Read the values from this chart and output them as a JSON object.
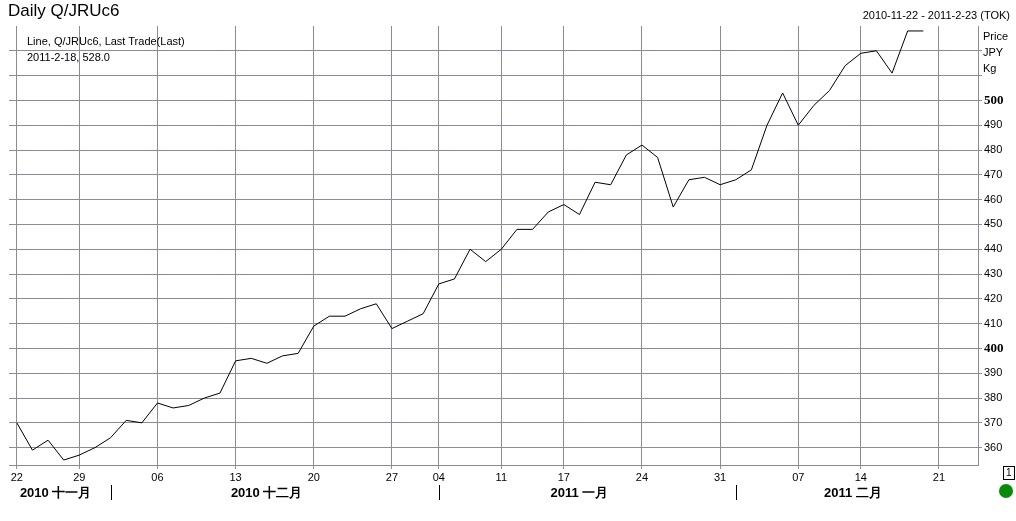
{
  "chart_data": {
    "type": "line",
    "title": "Daily Q/JRUc6",
    "subtitle": "2010-11-22 - 2011-2-23 (TOK)",
    "ylabel": "Price JPY Kg",
    "categories": [
      "22",
      null,
      null,
      null,
      "29",
      null,
      null,
      null,
      null,
      "06",
      null,
      null,
      null,
      null,
      "13",
      null,
      null,
      null,
      null,
      "20",
      null,
      null,
      null,
      null,
      "27",
      null,
      null,
      "04",
      null,
      null,
      null,
      "11",
      null,
      null,
      null,
      "17",
      null,
      null,
      null,
      null,
      "24",
      null,
      null,
      null,
      null,
      "31",
      null,
      null,
      null,
      null,
      "07",
      null,
      null,
      null,
      "14",
      null,
      null,
      null,
      null,
      "21",
      null,
      null
    ],
    "series": [
      {
        "name": "Line, Q/JRUc6, Last Trade(Last)",
        "color": "#000000",
        "values": [
          370,
          359,
          363,
          355,
          357,
          360,
          364,
          371,
          370,
          378,
          376,
          377,
          380,
          382,
          395,
          396,
          394,
          397,
          398,
          409,
          413,
          413,
          416,
          418,
          408,
          411,
          414,
          426,
          428,
          440,
          435,
          440,
          448,
          448,
          455,
          458,
          454,
          467,
          466,
          478,
          482,
          477,
          457,
          468,
          469,
          466,
          468,
          472,
          490,
          503,
          490,
          498,
          504,
          514,
          519,
          520,
          511,
          528,
          528,
          null,
          null,
          null
        ]
      }
    ],
    "ylim": [
      353,
      530
    ],
    "yticks": [
      360,
      370,
      380,
      390,
      400,
      410,
      420,
      430,
      440,
      450,
      460,
      470,
      480,
      490,
      500,
      {
        "value": 510,
        "label": null
      },
      {
        "value": 520,
        "label": null
      }
    ],
    "grid": true,
    "legend": "top left",
    "marker": "none",
    "line_style": "solid",
    "annotations": [
      "2011-2-18, 528.0",
      "2010 十一月",
      "2010 十二月",
      "2011 一月",
      "2011 二月",
      "1"
    ]
  }
}
